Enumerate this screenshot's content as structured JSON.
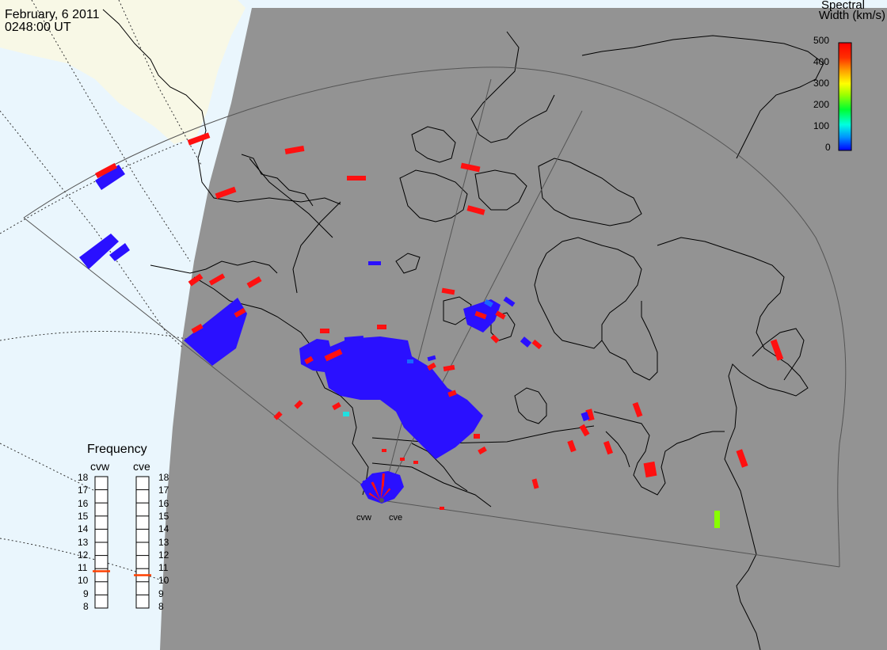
{
  "header": {
    "date": "February, 6 2011",
    "time": "0248:00 UT"
  },
  "legend": {
    "title_line1": "Spectral",
    "title_line2": "Width (km/s)",
    "ticks": [
      "500",
      "400",
      "300",
      "200",
      "100",
      "0"
    ],
    "range": [
      0,
      500
    ],
    "colors": [
      "#0000ff",
      "#00a0ff",
      "#00ffe0",
      "#00ff00",
      "#c0ff00",
      "#ffff00",
      "#ffa000",
      "#ff3000",
      "#ff0000"
    ]
  },
  "frequency": {
    "title": "Frequency",
    "radars": [
      {
        "name": "cvw",
        "value": 10.8
      },
      {
        "name": "cve",
        "value": 10.5
      }
    ],
    "ticks": [
      "18",
      "17",
      "16",
      "15",
      "14",
      "13",
      "12",
      "11",
      "10",
      "9",
      "8"
    ],
    "range": [
      8,
      18
    ],
    "indicator_color": "#ff4000"
  },
  "radars": [
    "cvw",
    "cve"
  ],
  "map": {
    "ocean_color": "#eaf6fd",
    "land_day_color": "#f8f8e6",
    "night_color": "#939393",
    "echo_colors": {
      "low": "#2a10ff",
      "high": "#ff1010",
      "mid_cyan": "#20e0e0",
      "mid_green": "#88ff00",
      "mid_blue": "#1868ff"
    }
  }
}
